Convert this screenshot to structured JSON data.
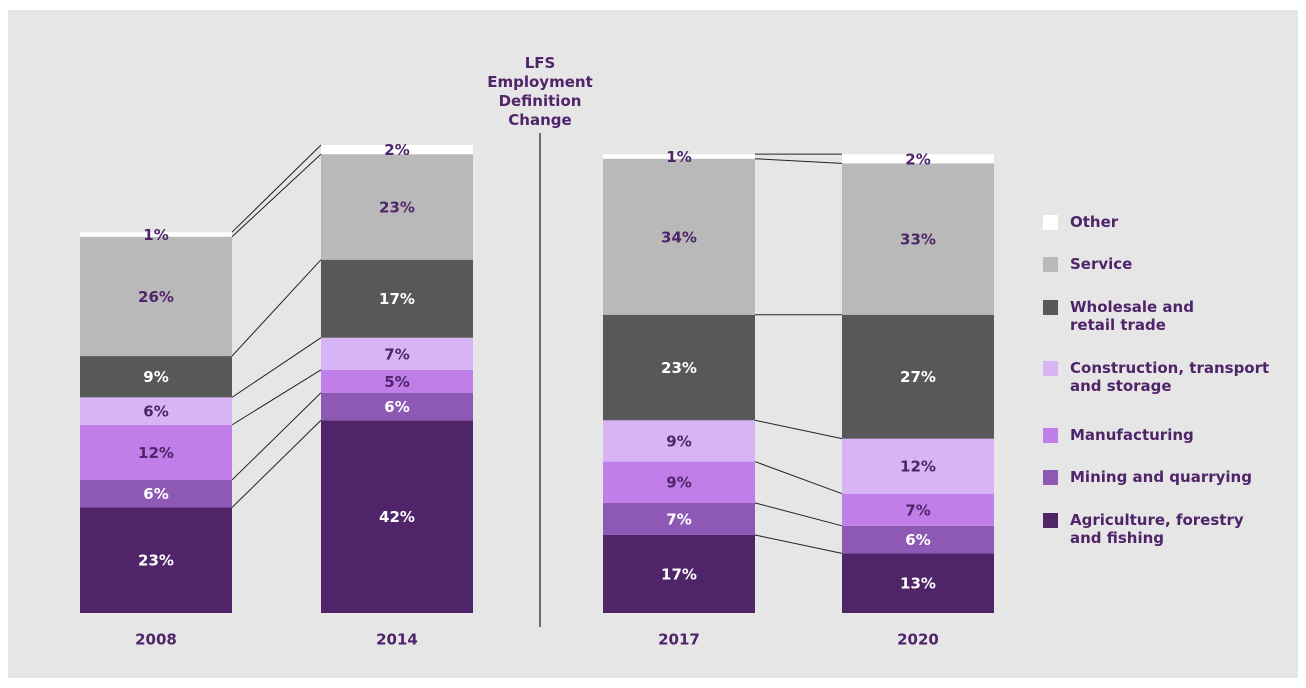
{
  "chart_data": {
    "type": "stacked_bar",
    "annotation": "LFS Employment Definition Change",
    "categories": [
      "2008",
      "2014",
      "2017",
      "2020"
    ],
    "series": [
      {
        "name": "Agriculture, forestry and fishing",
        "color": "#4f2469",
        "values": [
          23,
          42,
          17,
          13
        ]
      },
      {
        "name": "Mining and quarrying",
        "color": "#8e59b5",
        "values": [
          6,
          6,
          7,
          6
        ]
      },
      {
        "name": "Manufacturing",
        "color": "#c07fe8",
        "values": [
          12,
          5,
          9,
          7
        ]
      },
      {
        "name": "Construction, transport and storage",
        "color": "#d6b4f5",
        "values": [
          6,
          7,
          9,
          12
        ]
      },
      {
        "name": "Wholesale and retail trade",
        "color": "#585858",
        "values": [
          9,
          17,
          23,
          27
        ]
      },
      {
        "name": "Service",
        "color": "#b9b9b9",
        "values": [
          26,
          23,
          34,
          33
        ]
      },
      {
        "name": "Other",
        "color": "#ffffff",
        "values": [
          1,
          2,
          1,
          2
        ]
      }
    ],
    "value_labels": [
      [
        "23%",
        "42%",
        "17%",
        "13%"
      ],
      [
        "6%",
        "6%",
        "7%",
        "6%"
      ],
      [
        "12%",
        "5%",
        "9%",
        "7%"
      ],
      [
        "6%",
        "7%",
        "9%",
        "12%"
      ],
      [
        "9%",
        "17%",
        "23%",
        "27%"
      ],
      [
        "26%",
        "23%",
        "34%",
        "33%"
      ],
      [
        "1%",
        "2%",
        "1%",
        "2%"
      ]
    ]
  }
}
